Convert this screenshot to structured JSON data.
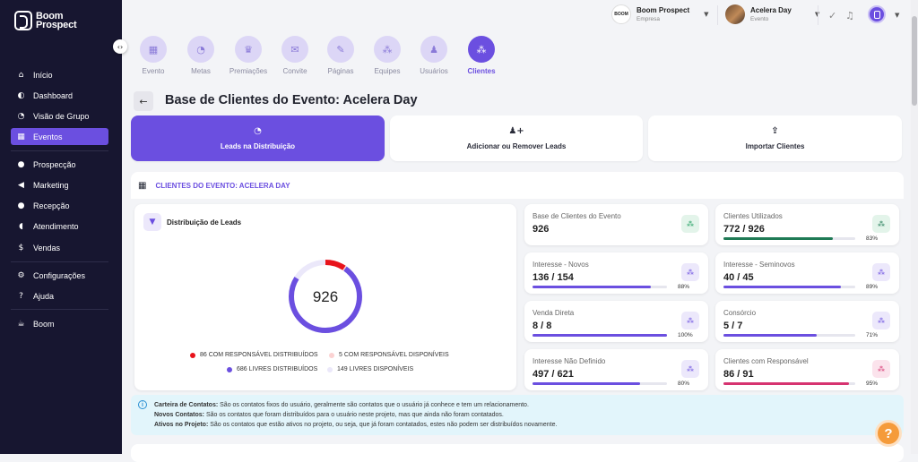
{
  "brand": {
    "line1": "Boom",
    "line2": "Prospect"
  },
  "sidebar": {
    "items": [
      {
        "label": "Início",
        "icon": "home-icon",
        "glyph": "⌂"
      },
      {
        "label": "Dashboard",
        "icon": "dashboard-icon",
        "glyph": "◐"
      },
      {
        "label": "Visão de Grupo",
        "icon": "pie-icon",
        "glyph": "◔"
      },
      {
        "label": "Eventos",
        "icon": "calendar-icon",
        "glyph": "▦"
      },
      {
        "label": "Prospecção",
        "icon": "users-icon",
        "glyph": "●"
      },
      {
        "label": "Marketing",
        "icon": "megaphone-icon",
        "glyph": "◀"
      },
      {
        "label": "Recepção",
        "icon": "location-icon",
        "glyph": "●"
      },
      {
        "label": "Atendimento",
        "icon": "headset-icon",
        "glyph": "◖"
      },
      {
        "label": "Vendas",
        "icon": "dollar-icon",
        "glyph": "$"
      },
      {
        "label": "Configurações",
        "icon": "gear-icon",
        "glyph": "⚙"
      },
      {
        "label": "Ajuda",
        "icon": "question-icon",
        "glyph": "?"
      },
      {
        "label": "Boom",
        "icon": "coffee-icon",
        "glyph": "☕"
      }
    ],
    "active": "Eventos"
  },
  "topbar": {
    "company": {
      "name": "Boom Prospect",
      "sub": "Empresa",
      "logo_text": "BOOM"
    },
    "event": {
      "name": "Acelera Day",
      "sub": "Evento"
    }
  },
  "steps": [
    {
      "label": "Evento",
      "glyph": "▦"
    },
    {
      "label": "Metas",
      "glyph": "◔"
    },
    {
      "label": "Premiações",
      "glyph": "♛"
    },
    {
      "label": "Convite",
      "glyph": "✉"
    },
    {
      "label": "Páginas",
      "glyph": "✎"
    },
    {
      "label": "Equipes",
      "glyph": "⁂"
    },
    {
      "label": "Usuários",
      "glyph": "♟"
    },
    {
      "label": "Clientes",
      "glyph": "⁂"
    }
  ],
  "page": {
    "title": "Base de Clientes do Evento: Acelera Day"
  },
  "tabs": [
    {
      "label": "Leads na Distribuição",
      "glyph": "◔"
    },
    {
      "label": "Adicionar ou Remover Leads",
      "glyph": "♟+"
    },
    {
      "label": "Importar Clientes",
      "glyph": "⇪"
    }
  ],
  "section": {
    "label": "CLIENTES DO EVENTO: ACELERA DAY"
  },
  "distribution": {
    "title": "Distribuição de Leads",
    "total": "926",
    "legend": [
      {
        "label": "86 COM RESPONSÁVEL DISTRIBUÍDOS",
        "color": "#e8131b"
      },
      {
        "label": "5 COM RESPONSÁVEL DISPONÍVEIS",
        "color": "#fbd2d2"
      },
      {
        "label": "686 LIVRES DISTRIBUÍDOS",
        "color": "#6b4fe0"
      },
      {
        "label": "149 LIVRES DISPONÍVEIS",
        "color": "#ebe8fa"
      }
    ],
    "segments": [
      86,
      5,
      686,
      149
    ]
  },
  "stats": [
    {
      "label": "Base de Clientes do Evento",
      "value": "926",
      "percent": null,
      "color": "#1f9e60",
      "icon_bg": "#e3f4ea"
    },
    {
      "label": "Clientes Utilizados",
      "value": "772 / 926",
      "percent": "83%",
      "fraction": 0.83,
      "color": "#1f7a55",
      "icon_bg": "#e3f4ea"
    },
    {
      "label": "Interesse - Novos",
      "value": "136 / 154",
      "percent": "88%",
      "fraction": 0.88,
      "color": "#6b4fe0",
      "icon_bg": "#ece8fb"
    },
    {
      "label": "Interesse - Seminovos",
      "value": "40 / 45",
      "percent": "89%",
      "fraction": 0.89,
      "color": "#6b4fe0",
      "icon_bg": "#ece8fb"
    },
    {
      "label": "Venda Direta",
      "value": "8 / 8",
      "percent": "100%",
      "fraction": 1.0,
      "color": "#6b4fe0",
      "icon_bg": "#ece8fb"
    },
    {
      "label": "Consórcio",
      "value": "5 / 7",
      "percent": "71%",
      "fraction": 0.71,
      "color": "#6b4fe0",
      "icon_bg": "#ece8fb"
    },
    {
      "label": "Interesse Não Definido",
      "value": "497 / 621",
      "percent": "80%",
      "fraction": 0.8,
      "color": "#6b4fe0",
      "icon_bg": "#ece8fb"
    },
    {
      "label": "Clientes com Responsável",
      "value": "86 / 91",
      "percent": "95%",
      "fraction": 0.95,
      "color": "#d63370",
      "icon_bg": "#fbe3ec"
    }
  ],
  "info": {
    "rows": [
      {
        "term": "Carteira de Contatos:",
        "text": " São os contatos fixos do usuário, geralmente são contatos que o usuário já conhece e tem um relacionamento."
      },
      {
        "term": "Novos Contatos:",
        "text": " São os contatos que foram distribuídos para o usuário neste projeto, mas que ainda não foram contatados."
      },
      {
        "term": "Ativos no Projeto:",
        "text": " São os contatos que estão ativos no projeto, ou seja, que já foram contatados, estes não podem ser distribuídos novamente."
      }
    ]
  },
  "help": {
    "glyph": "?"
  }
}
